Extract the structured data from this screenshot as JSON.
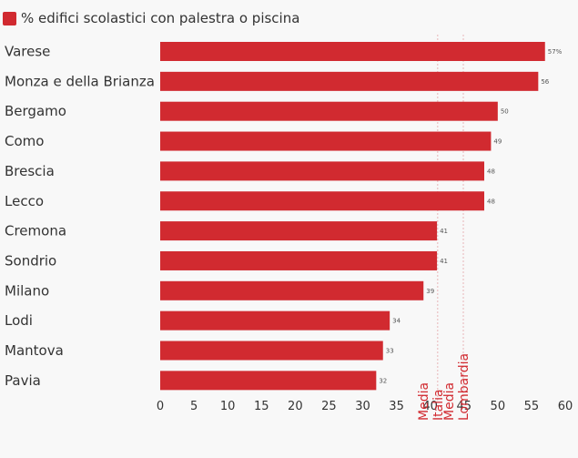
{
  "legend": {
    "label": "% edifici scolastici con palestra o piscina"
  },
  "colors": {
    "bar": "#d12a30",
    "ref_line": "#e8b6b8",
    "ref_text": "#d12a30",
    "text": "#333333",
    "value_text": "#555555"
  },
  "chart_data": {
    "type": "bar",
    "orientation": "horizontal",
    "categories": [
      "Varese",
      "Monza e della Brianza",
      "Bergamo",
      "Como",
      "Brescia",
      "Lecco",
      "Cremona",
      "Sondrio",
      "Milano",
      "Lodi",
      "Mantova",
      "Pavia"
    ],
    "series": [
      {
        "name": "% edifici scolastici con palestra o piscina",
        "values": [
          57,
          56,
          50,
          49,
          48,
          48,
          41,
          41,
          39,
          34,
          33,
          32
        ]
      }
    ],
    "value_labels": [
      "57%",
      "56",
      "50",
      "49",
      "48",
      "48",
      "41",
      "41",
      "39",
      "34",
      "33",
      "32"
    ],
    "xlim": [
      0,
      60
    ],
    "x_ticks": [
      "0",
      "5",
      "10",
      "15",
      "20",
      "25",
      "30",
      "35",
      "40",
      "45",
      "50",
      "55",
      "60"
    ],
    "reference_lines": [
      {
        "label": "Media Italia",
        "value": 41.1
      },
      {
        "label": "Media Lombardia",
        "value": 44.9
      }
    ],
    "legend_position": "top-left",
    "grid": false
  }
}
